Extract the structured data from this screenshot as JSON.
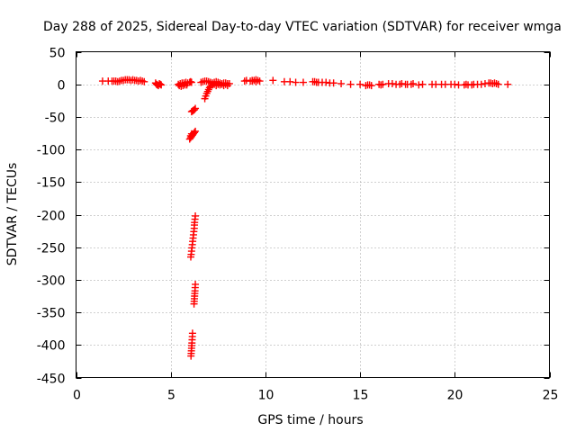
{
  "chart_data": {
    "type": "scatter",
    "title": "Day 288 of 2025, Sidereal Day-to-day VTEC variation (SDTVAR) for receiver wmga",
    "xlabel": "GPS time / hours",
    "ylabel": "SDTVAR / TECUs",
    "xlim": [
      0,
      25
    ],
    "ylim": [
      -450,
      50
    ],
    "xticks": [
      0,
      5,
      10,
      15,
      20,
      25
    ],
    "yticks": [
      50,
      0,
      -50,
      -100,
      -150,
      -200,
      -250,
      -300,
      -350,
      -400,
      -450
    ],
    "grid": true,
    "marker": "+",
    "color": "#ff0000",
    "series": [
      {
        "name": "SDTVAR",
        "points": [
          [
            1.4,
            5
          ],
          [
            1.7,
            5
          ],
          [
            1.9,
            5
          ],
          [
            2.0,
            5
          ],
          [
            2.1,
            5
          ],
          [
            2.2,
            4
          ],
          [
            2.3,
            5
          ],
          [
            2.4,
            6
          ],
          [
            2.5,
            6
          ],
          [
            2.6,
            7
          ],
          [
            2.7,
            7
          ],
          [
            2.8,
            7
          ],
          [
            2.9,
            6
          ],
          [
            3.0,
            7
          ],
          [
            3.1,
            6
          ],
          [
            3.2,
            6
          ],
          [
            3.3,
            5
          ],
          [
            3.4,
            6
          ],
          [
            3.5,
            5
          ],
          [
            3.6,
            4
          ],
          [
            4.2,
            2
          ],
          [
            4.25,
            0
          ],
          [
            4.3,
            -1
          ],
          [
            4.35,
            -2
          ],
          [
            4.4,
            1
          ],
          [
            4.45,
            0
          ],
          [
            4.5,
            -1
          ],
          [
            5.4,
            0
          ],
          [
            5.5,
            1
          ],
          [
            5.6,
            2
          ],
          [
            5.7,
            2
          ],
          [
            5.8,
            3
          ],
          [
            5.9,
            2
          ],
          [
            6.0,
            3
          ],
          [
            6.05,
            4
          ],
          [
            6.1,
            3
          ],
          [
            5.45,
            -2
          ],
          [
            5.55,
            -3
          ],
          [
            5.65,
            -2
          ],
          [
            5.75,
            -1
          ],
          [
            5.85,
            -1
          ],
          [
            6.6,
            3
          ],
          [
            6.7,
            4
          ],
          [
            6.8,
            5
          ],
          [
            6.9,
            5
          ],
          [
            7.0,
            4
          ],
          [
            7.1,
            3
          ],
          [
            7.2,
            2
          ],
          [
            7.3,
            3
          ],
          [
            7.4,
            4
          ],
          [
            7.5,
            3
          ],
          [
            7.6,
            2
          ],
          [
            7.7,
            1
          ],
          [
            7.8,
            2
          ],
          [
            7.9,
            2
          ],
          [
            8.0,
            1
          ],
          [
            8.1,
            1
          ],
          [
            7.2,
            -1
          ],
          [
            7.4,
            -2
          ],
          [
            7.6,
            -1
          ],
          [
            7.8,
            -2
          ],
          [
            8.0,
            -2
          ],
          [
            7.3,
            0
          ],
          [
            7.5,
            0
          ],
          [
            7.7,
            0
          ],
          [
            7.9,
            0
          ],
          [
            7.1,
            -3
          ],
          [
            7.05,
            -5
          ],
          [
            7.0,
            -8
          ],
          [
            6.95,
            -11
          ],
          [
            6.9,
            -14
          ],
          [
            6.85,
            -18
          ],
          [
            6.8,
            -22
          ],
          [
            6.3,
            -37
          ],
          [
            6.25,
            -39
          ],
          [
            6.2,
            -40
          ],
          [
            6.15,
            -41
          ],
          [
            6.1,
            -42
          ],
          [
            6.3,
            -72
          ],
          [
            6.25,
            -74
          ],
          [
            6.2,
            -76
          ],
          [
            6.15,
            -78
          ],
          [
            6.1,
            -80
          ],
          [
            6.05,
            -82
          ],
          [
            6.0,
            -84
          ],
          [
            6.05,
            -79
          ],
          [
            6.1,
            -76
          ],
          [
            6.3,
            -202
          ],
          [
            6.28,
            -207
          ],
          [
            6.26,
            -212
          ],
          [
            6.25,
            -216
          ],
          [
            6.24,
            -221
          ],
          [
            6.22,
            -226
          ],
          [
            6.2,
            -231
          ],
          [
            6.18,
            -236
          ],
          [
            6.16,
            -241
          ],
          [
            6.14,
            -246
          ],
          [
            6.12,
            -251
          ],
          [
            6.1,
            -256
          ],
          [
            6.08,
            -261
          ],
          [
            6.06,
            -265
          ],
          [
            6.3,
            -307
          ],
          [
            6.29,
            -312
          ],
          [
            6.28,
            -317
          ],
          [
            6.27,
            -321
          ],
          [
            6.26,
            -325
          ],
          [
            6.25,
            -329
          ],
          [
            6.24,
            -333
          ],
          [
            6.23,
            -337
          ],
          [
            6.15,
            -382
          ],
          [
            6.14,
            -387
          ],
          [
            6.13,
            -392
          ],
          [
            6.12,
            -397
          ],
          [
            6.11,
            -401
          ],
          [
            6.1,
            -405
          ],
          [
            6.09,
            -409
          ],
          [
            6.08,
            -413
          ],
          [
            6.07,
            -417
          ],
          [
            8.9,
            5
          ],
          [
            9.0,
            6
          ],
          [
            9.2,
            5
          ],
          [
            9.3,
            6
          ],
          [
            9.4,
            6
          ],
          [
            9.5,
            7
          ],
          [
            9.6,
            6
          ],
          [
            9.7,
            5
          ],
          [
            9.5,
            4
          ],
          [
            9.3,
            5
          ],
          [
            10.4,
            6
          ],
          [
            11.0,
            4
          ],
          [
            11.3,
            4
          ],
          [
            11.6,
            3
          ],
          [
            12.0,
            3
          ],
          [
            12.5,
            4
          ],
          [
            12.6,
            4
          ],
          [
            12.7,
            3
          ],
          [
            12.8,
            3
          ],
          [
            13.0,
            3
          ],
          [
            13.2,
            3
          ],
          [
            13.4,
            2
          ],
          [
            13.6,
            2
          ],
          [
            14.0,
            1
          ],
          [
            14.5,
            0
          ],
          [
            15.0,
            0
          ],
          [
            15.3,
            -2
          ],
          [
            15.4,
            -1
          ],
          [
            15.5,
            -1
          ],
          [
            15.6,
            -2
          ],
          [
            16.0,
            0
          ],
          [
            16.1,
            -1
          ],
          [
            16.2,
            0
          ],
          [
            16.5,
            1
          ],
          [
            16.7,
            1
          ],
          [
            16.9,
            0
          ],
          [
            17.1,
            0
          ],
          [
            17.2,
            1
          ],
          [
            17.4,
            0
          ],
          [
            17.5,
            0
          ],
          [
            17.7,
            0
          ],
          [
            17.8,
            1
          ],
          [
            18.1,
            -1
          ],
          [
            18.3,
            0
          ],
          [
            18.8,
            0
          ],
          [
            19.0,
            0
          ],
          [
            19.3,
            0
          ],
          [
            19.5,
            0
          ],
          [
            19.8,
            0
          ],
          [
            20.0,
            0
          ],
          [
            20.2,
            -1
          ],
          [
            20.5,
            -1
          ],
          [
            20.6,
            0
          ],
          [
            20.7,
            -1
          ],
          [
            20.9,
            -1
          ],
          [
            21.0,
            0
          ],
          [
            21.2,
            0
          ],
          [
            21.4,
            0
          ],
          [
            21.6,
            1
          ],
          [
            21.8,
            2
          ],
          [
            21.9,
            2
          ],
          [
            22.0,
            1
          ],
          [
            22.1,
            2
          ],
          [
            22.2,
            1
          ],
          [
            22.3,
            0
          ],
          [
            22.8,
            0
          ]
        ]
      }
    ]
  }
}
